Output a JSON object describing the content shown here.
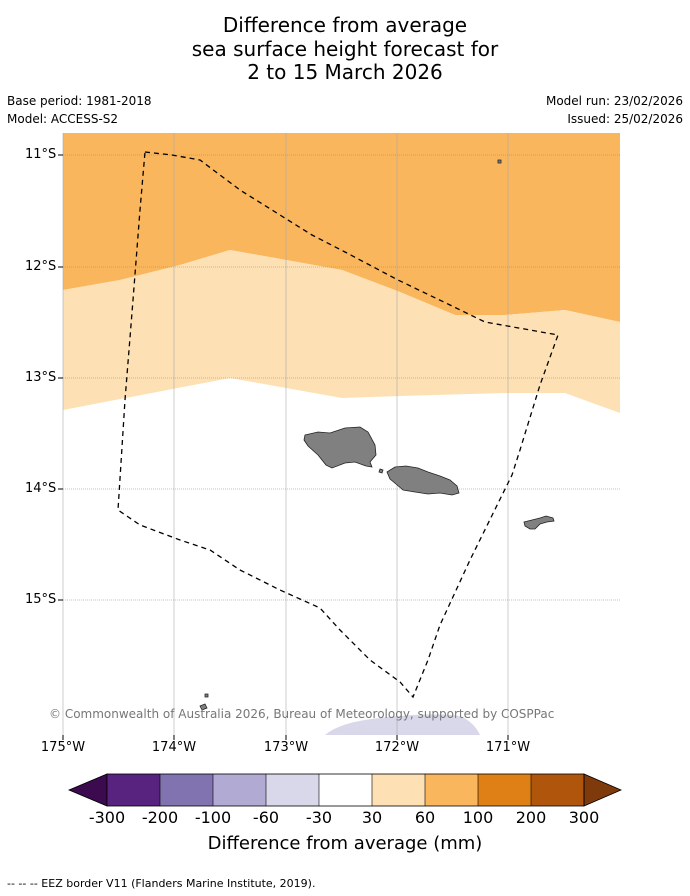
{
  "title": {
    "line1": "Difference from average",
    "line2": "sea surface height forecast for",
    "line3": "2 to 15 March 2026"
  },
  "meta": {
    "base_period": "Base period: 1981-2018",
    "model": "Model: ACCESS-S2",
    "model_run": "Model run: 23/02/2026",
    "issued": "Issued: 25/02/2026"
  },
  "axes": {
    "lat_labels": [
      "11°S",
      "12°S",
      "13°S",
      "14°S",
      "15°S"
    ],
    "lon_labels": [
      "175°W",
      "174°W",
      "173°W",
      "172°W",
      "171°W"
    ]
  },
  "map": {
    "ocean_color": "#ffffff",
    "land_color": "#808080",
    "band_60_100_color": "#fab65d",
    "band_30_60_color": "#fde0b3",
    "band_neg30_neg60_color": "#d8d8ea",
    "eez_label": "EEZ border"
  },
  "copyright": "© Commonwealth of Australia 2026, Bureau of Meteorology, supported by COSPPac",
  "colorbar": {
    "label": "Difference from average (mm)",
    "ticks": [
      "-300",
      "-200",
      "-100",
      "-60",
      "-30",
      "30",
      "60",
      "100",
      "200",
      "300"
    ],
    "colors": [
      "#3b0a4f",
      "#57237f",
      "#8173b0",
      "#b1aad3",
      "#d8d8ea",
      "#ffffff",
      "#fde0b3",
      "#fab65d",
      "#df8016",
      "#b0560c",
      "#7e3a0b"
    ]
  },
  "footer": "-- -- -- EEZ border V11 (Flanders Marine Institute, 2019)."
}
